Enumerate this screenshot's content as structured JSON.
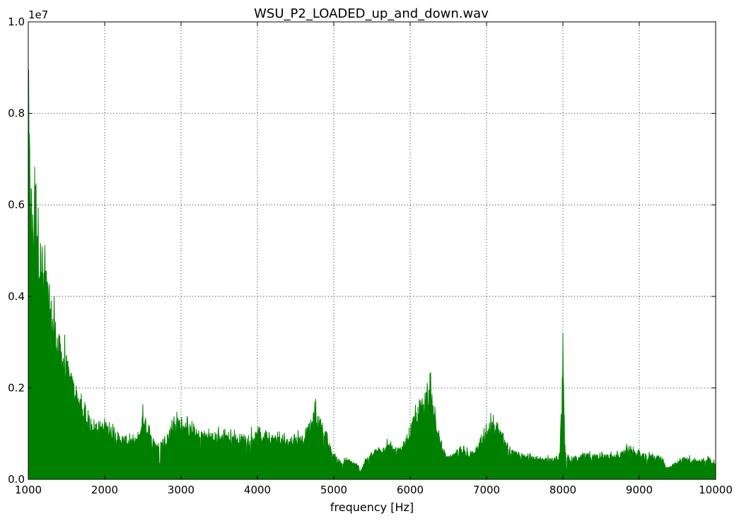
{
  "chart_data": {
    "type": "area",
    "title": "WSU_P2_LOADED_up_and_down.wav",
    "xlabel": "frequency [Hz]",
    "ylabel": "",
    "y_offset_label": "1e7",
    "xlim": [
      1000,
      10000
    ],
    "ylim": [
      0.0,
      1.0
    ],
    "y_scale_factor": 10000000,
    "x_ticks": [
      1000,
      2000,
      3000,
      4000,
      5000,
      6000,
      7000,
      8000,
      9000,
      10000
    ],
    "x_tick_labels": [
      "1000",
      "2000",
      "3000",
      "4000",
      "5000",
      "6000",
      "7000",
      "8000",
      "9000",
      "10000"
    ],
    "y_ticks": [
      0.0,
      0.2,
      0.4,
      0.6,
      0.8,
      1.0
    ],
    "y_tick_labels": [
      "0.0",
      "0.2",
      "0.4",
      "0.6",
      "0.8",
      "1.0"
    ],
    "grid": true,
    "series": [
      {
        "color": "#008000",
        "envelope": [
          [
            1000,
            0.98
          ],
          [
            1010,
            0.8
          ],
          [
            1030,
            0.7
          ],
          [
            1060,
            0.6
          ],
          [
            1100,
            0.68
          ],
          [
            1150,
            0.55
          ],
          [
            1200,
            0.5
          ],
          [
            1250,
            0.45
          ],
          [
            1300,
            0.4
          ],
          [
            1350,
            0.36
          ],
          [
            1400,
            0.32
          ],
          [
            1450,
            0.3
          ],
          [
            1500,
            0.27
          ],
          [
            1550,
            0.24
          ],
          [
            1600,
            0.22
          ],
          [
            1650,
            0.2
          ],
          [
            1700,
            0.17
          ],
          [
            1750,
            0.15
          ],
          [
            1800,
            0.14
          ],
          [
            1900,
            0.13
          ],
          [
            2000,
            0.125
          ],
          [
            2100,
            0.115
          ],
          [
            2200,
            0.1
          ],
          [
            2300,
            0.095
          ],
          [
            2400,
            0.085
          ],
          [
            2450,
            0.1
          ],
          [
            2500,
            0.15
          ],
          [
            2550,
            0.13
          ],
          [
            2600,
            0.1
          ],
          [
            2650,
            0.09
          ],
          [
            2700,
            0.08
          ],
          [
            2800,
            0.1
          ],
          [
            2900,
            0.13
          ],
          [
            3000,
            0.14
          ],
          [
            3100,
            0.12
          ],
          [
            3200,
            0.11
          ],
          [
            3400,
            0.105
          ],
          [
            3600,
            0.1
          ],
          [
            3800,
            0.1
          ],
          [
            4000,
            0.105
          ],
          [
            4200,
            0.1
          ],
          [
            4400,
            0.09
          ],
          [
            4600,
            0.1
          ],
          [
            4700,
            0.13
          ],
          [
            4760,
            0.16
          ],
          [
            4800,
            0.14
          ],
          [
            4850,
            0.13
          ],
          [
            4900,
            0.1
          ],
          [
            4950,
            0.07
          ],
          [
            5000,
            0.055
          ],
          [
            5050,
            0.05
          ],
          [
            5100,
            0.04
          ],
          [
            5200,
            0.045
          ],
          [
            5300,
            0.035
          ],
          [
            5350,
            0.02
          ],
          [
            5400,
            0.04
          ],
          [
            5500,
            0.06
          ],
          [
            5600,
            0.075
          ],
          [
            5700,
            0.08
          ],
          [
            5800,
            0.07
          ],
          [
            5900,
            0.07
          ],
          [
            6000,
            0.12
          ],
          [
            6100,
            0.16
          ],
          [
            6200,
            0.2
          ],
          [
            6260,
            0.22
          ],
          [
            6300,
            0.17
          ],
          [
            6350,
            0.12
          ],
          [
            6400,
            0.08
          ],
          [
            6450,
            0.06
          ],
          [
            6500,
            0.05
          ],
          [
            6600,
            0.06
          ],
          [
            6700,
            0.07
          ],
          [
            6800,
            0.06
          ],
          [
            6900,
            0.08
          ],
          [
            7000,
            0.11
          ],
          [
            7050,
            0.13
          ],
          [
            7100,
            0.13
          ],
          [
            7150,
            0.12
          ],
          [
            7200,
            0.11
          ],
          [
            7250,
            0.08
          ],
          [
            7300,
            0.065
          ],
          [
            7400,
            0.06
          ],
          [
            7500,
            0.055
          ],
          [
            7600,
            0.055
          ],
          [
            7700,
            0.045
          ],
          [
            7800,
            0.05
          ],
          [
            7900,
            0.045
          ],
          [
            7960,
            0.06
          ],
          [
            8000,
            0.29
          ],
          [
            8030,
            0.06
          ],
          [
            8100,
            0.05
          ],
          [
            8200,
            0.05
          ],
          [
            8300,
            0.06
          ],
          [
            8400,
            0.055
          ],
          [
            8500,
            0.055
          ],
          [
            8600,
            0.055
          ],
          [
            8700,
            0.055
          ],
          [
            8800,
            0.065
          ],
          [
            8850,
            0.075
          ],
          [
            8900,
            0.065
          ],
          [
            9000,
            0.06
          ],
          [
            9100,
            0.055
          ],
          [
            9200,
            0.055
          ],
          [
            9300,
            0.05
          ],
          [
            9350,
            0.025
          ],
          [
            9400,
            0.03
          ],
          [
            9500,
            0.04
          ],
          [
            9600,
            0.05
          ],
          [
            9700,
            0.045
          ],
          [
            9800,
            0.045
          ],
          [
            9900,
            0.05
          ],
          [
            10000,
            0.04
          ]
        ]
      }
    ]
  }
}
